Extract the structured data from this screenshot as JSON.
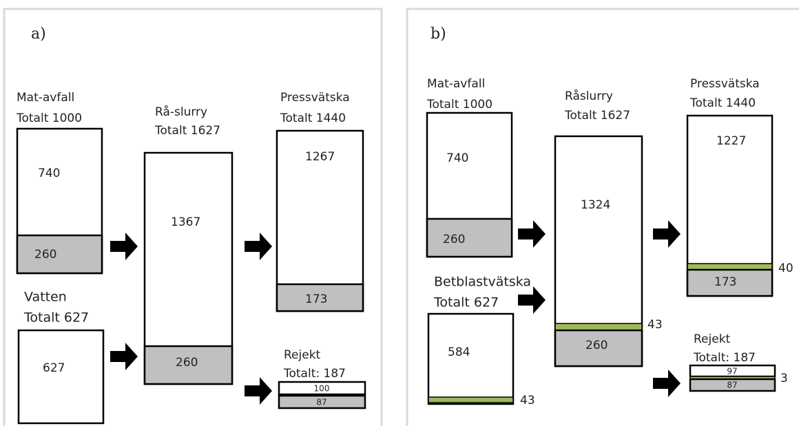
{
  "panels": [
    {
      "label": "a)",
      "blocks": [
        {
          "title": "Mat-avfall",
          "total": "Totalt 1000",
          "parts": [
            740,
            260
          ]
        },
        {
          "title": "Vatten",
          "total": "Totalt 627",
          "parts": [
            627
          ]
        },
        {
          "title": "Rå-slurry",
          "total": "Totalt 1627",
          "parts": [
            1367,
            260
          ]
        },
        {
          "title": "Pressvätska",
          "total": "Totalt 1440",
          "parts": [
            1267,
            173
          ]
        },
        {
          "title": "Rejekt",
          "total": "Totalt: 187",
          "parts": [
            100,
            87
          ]
        }
      ]
    },
    {
      "label": "b)",
      "blocks": [
        {
          "title": "Mat-avfall",
          "total": "Totalt 1000",
          "parts": [
            740,
            260
          ]
        },
        {
          "title": "Betblastvätska",
          "total": "Totalt 627",
          "parts": [
            584,
            43
          ]
        },
        {
          "title": "Råslurry",
          "total": "Totalt 1627",
          "parts": [
            1324,
            43,
            260
          ]
        },
        {
          "title": "Pressvätska",
          "total": "Totalt 1440",
          "parts": [
            1227,
            40,
            173
          ]
        },
        {
          "title": "Rejekt",
          "total": "Totalt: 187",
          "parts": [
            97,
            3,
            87
          ]
        }
      ]
    }
  ]
}
